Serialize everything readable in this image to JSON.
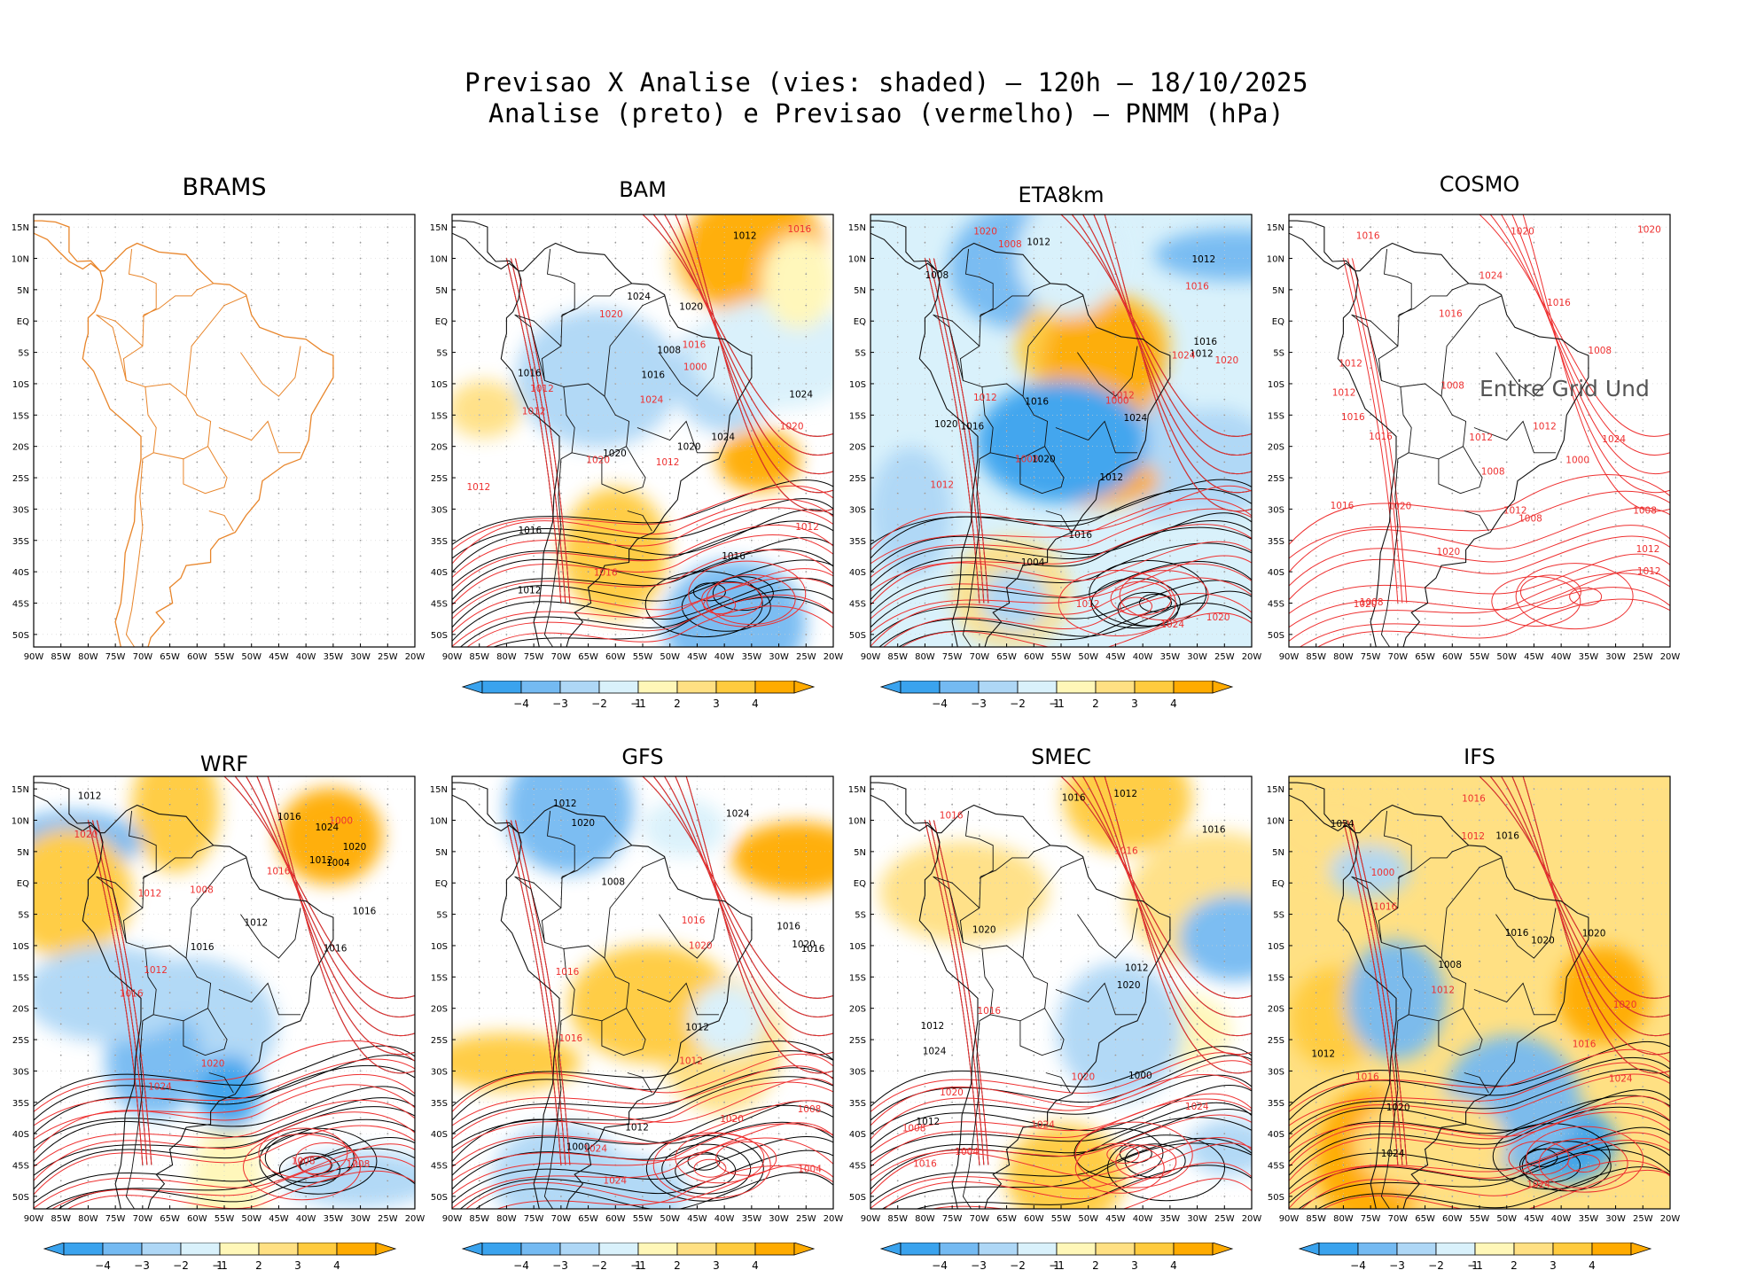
{
  "figure": {
    "title_line1": "Previsao X Analise (vies: shaded) – 120h – 18/10/2025",
    "title_line2": "Analise (preto) e Previsao (vermelho) – PNMM (hPa)"
  },
  "colors": {
    "neg4": "#3aa3ee",
    "neg3": "#74baf2",
    "neg2": "#aed7f6",
    "neg1": "#d9f1fb",
    "zero": "#ffffff",
    "pos1": "#fff7b8",
    "pos2": "#ffe083",
    "pos3": "#ffcb3e",
    "pos4": "#ffab00",
    "analysis_contour": "#000000",
    "forecast_contour": "#ee3030",
    "coast_map": "#e8852a"
  },
  "chart_data": [
    {
      "type": "heatmap",
      "title": "BRAMS",
      "xlabel": "",
      "ylabel": "",
      "xlim": [
        -90,
        -20
      ],
      "ylim": [
        -52,
        17
      ],
      "status_text": "",
      "contour_labels": [],
      "mean_bias": 0,
      "blob_biases": []
    },
    {
      "type": "heatmap",
      "title": "BAM",
      "xlim": [
        -90,
        -20
      ],
      "ylim": [
        -52,
        17
      ],
      "status_text": "",
      "contour_labels": [
        "1016",
        "1016",
        "1012",
        "1012",
        "1012",
        "1008",
        "1012",
        "1012",
        "1016",
        "1016",
        "1020",
        "1024",
        "1020",
        "1024",
        "1016",
        "1020",
        "1024",
        "1016",
        "1012",
        "1020",
        "1000",
        "1024",
        "1020",
        "1020",
        "1012",
        "1016"
      ],
      "mean_bias": 0,
      "blob_biases": [
        2,
        3,
        4,
        4,
        -2,
        -3,
        -2,
        2,
        -1,
        1
      ]
    },
    {
      "type": "heatmap",
      "title": "ETA8km",
      "xlim": [
        -90,
        -20
      ],
      "ylim": [
        -52,
        17
      ],
      "status_text": "",
      "contour_labels": [
        "1016",
        "1012",
        "1008",
        "1012",
        "1012",
        "1012",
        "1008",
        "1012",
        "1012",
        "1008",
        "1012",
        "1016",
        "1020",
        "1020",
        "1024",
        "1016",
        "1024",
        "1016",
        "1020",
        "1020",
        "1012",
        "1004",
        "1000",
        "1016",
        "1020",
        "1024"
      ],
      "mean_bias": -1,
      "blob_biases": [
        -2,
        -3,
        -2,
        -3,
        -2,
        2,
        3,
        4,
        4,
        -2,
        -1,
        -4
      ]
    },
    {
      "type": "heatmap",
      "title": "COSMO",
      "xlim": [
        -90,
        -20
      ],
      "ylim": [
        -52,
        17
      ],
      "status_text": "Entire Grid Und",
      "contour_labels": [
        "1012",
        "1012",
        "1008",
        "1012",
        "1012",
        "1008",
        "1012",
        "1016",
        "1008",
        "1008",
        "1008",
        "1008",
        "1016",
        "1016",
        "1020",
        "1012",
        "1016",
        "1020",
        "1024",
        "1024",
        "1016",
        "1020",
        "1020",
        "1000",
        "1016",
        "1020",
        "1012"
      ],
      "mean_bias": 0,
      "blob_biases": []
    },
    {
      "type": "heatmap",
      "title": "WRF",
      "xlim": [
        -90,
        -20
      ],
      "ylim": [
        -52,
        17
      ],
      "status_text": "",
      "contour_labels": [
        "1016",
        "1012",
        "1012",
        "1012",
        "1008",
        "1012",
        "1008",
        "1016",
        "1016",
        "1020",
        "1024",
        "1016",
        "1020",
        "1016",
        "1008",
        "1004",
        "1000",
        "1024",
        "1020",
        "1016",
        "1012"
      ],
      "mean_bias": 0,
      "blob_biases": [
        -2,
        -3,
        1,
        3,
        -2,
        -4,
        -3,
        4,
        3,
        -2
      ]
    },
    {
      "type": "heatmap",
      "title": "GFS",
      "xlim": [
        -90,
        -20
      ],
      "ylim": [
        -52,
        17
      ],
      "status_text": "",
      "contour_labels": [
        "1016",
        "1012",
        "1012",
        "1008",
        "1008",
        "1012",
        "1016",
        "1016",
        "1020",
        "1020",
        "1024",
        "1016",
        "1020",
        "1024",
        "1004",
        "1000",
        "1024",
        "1020",
        "1016",
        "1012"
      ],
      "mean_bias": 0,
      "blob_biases": [
        -1,
        -2,
        2,
        3,
        4,
        3,
        -3,
        -2,
        -1
      ]
    },
    {
      "type": "heatmap",
      "title": "SMEC",
      "xlim": [
        -90,
        -20
      ],
      "ylim": [
        -52,
        17
      ],
      "status_text": "",
      "contour_labels": [
        "1016",
        "1012",
        "1016",
        "1012",
        "1008",
        "1012",
        "1016",
        "1016",
        "1020",
        "1020",
        "1024",
        "1016",
        "1020",
        "1024",
        "1004",
        "1000",
        "1024",
        "1020",
        "1016",
        "1012"
      ],
      "mean_bias": 0,
      "blob_biases": [
        1,
        2,
        2,
        3,
        -3,
        -2,
        3,
        -2
      ]
    },
    {
      "type": "heatmap",
      "title": "IFS",
      "xlim": [
        -90,
        -20
      ],
      "ylim": [
        -52,
        17
      ],
      "status_text": "",
      "contour_labels": [
        "1016",
        "1012",
        "1012",
        "1008",
        "1012",
        "1016",
        "1016",
        "1016",
        "1020",
        "1024",
        "1024",
        "1020",
        "1016",
        "1024",
        "1000",
        "1020",
        "1016",
        "1020",
        "1024"
      ],
      "mean_bias": 2,
      "blob_biases": [
        2,
        3,
        4,
        4,
        3,
        -3,
        -4,
        -3,
        -2,
        2
      ]
    }
  ],
  "axes": {
    "lat_ticks": [
      "15N",
      "10N",
      "5N",
      "EQ",
      "5S",
      "10S",
      "15S",
      "20S",
      "25S",
      "30S",
      "35S",
      "40S",
      "45S",
      "50S"
    ],
    "lon_ticks": [
      "90W",
      "85W",
      "80W",
      "75W",
      "70W",
      "65W",
      "60W",
      "55W",
      "50W",
      "45W",
      "40W",
      "35W",
      "30W",
      "25W",
      "20W"
    ]
  },
  "colorbar": {
    "labels": [
      "−4",
      "−3",
      "−2",
      "−1",
      "1",
      "2",
      "3",
      "4"
    ],
    "levels": [
      -4,
      -3,
      -2,
      -1,
      1,
      2,
      3,
      4
    ]
  }
}
